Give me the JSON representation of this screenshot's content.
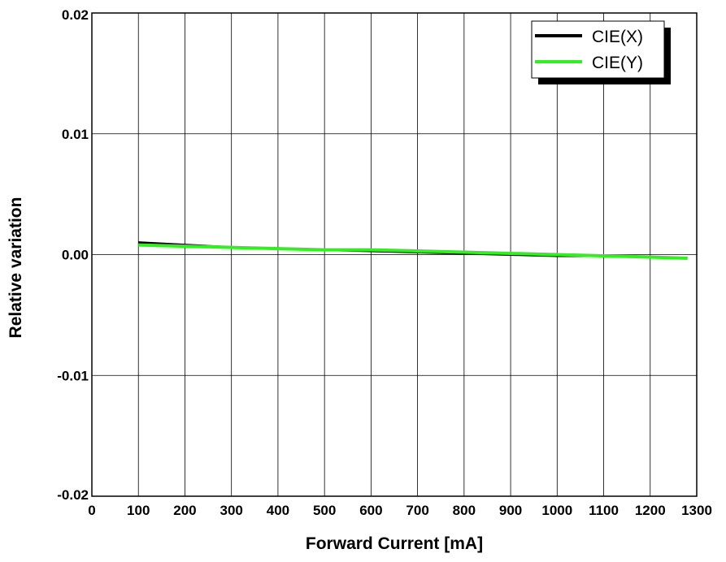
{
  "chart_data": {
    "type": "line",
    "title": "",
    "xlabel": "Forward Current [mA]",
    "ylabel": "Relative variation",
    "xlim": [
      0,
      1300
    ],
    "ylim": [
      -0.02,
      0.02
    ],
    "x_ticks": [
      0,
      100,
      200,
      300,
      400,
      500,
      600,
      700,
      800,
      900,
      1000,
      1100,
      1200,
      1300
    ],
    "x_tick_labels": [
      "0",
      "100",
      "200",
      "300",
      "400",
      "500",
      "600",
      "700",
      "800",
      "900",
      "1000",
      "1100",
      "1200",
      "1300"
    ],
    "y_ticks": [
      -0.02,
      -0.01,
      0.0,
      0.01,
      0.02
    ],
    "y_tick_labels": [
      "-0.02",
      "-0.01",
      "0.00",
      "0.01",
      "0.02"
    ],
    "grid": true,
    "legend_position": "top-right",
    "series": [
      {
        "name": "CIE(X)",
        "color": "#000000",
        "x": [
          100,
          200,
          300,
          400,
          500,
          600,
          700,
          800,
          900,
          1000,
          1100,
          1200,
          1280
        ],
        "y": [
          0.001,
          0.0008,
          0.0006,
          0.0005,
          0.0004,
          0.0003,
          0.0002,
          0.0001,
          0.0,
          -0.0001,
          -0.0001,
          -0.0002,
          -0.0003
        ]
      },
      {
        "name": "CIE(Y)",
        "color": "#33ee22",
        "x": [
          100,
          200,
          300,
          400,
          500,
          600,
          700,
          800,
          900,
          1000,
          1100,
          1200,
          1280
        ],
        "y": [
          0.0008,
          0.0007,
          0.0006,
          0.0005,
          0.0004,
          0.0004,
          0.0003,
          0.0002,
          0.0001,
          0.0,
          -0.0001,
          -0.0002,
          -0.0003
        ]
      }
    ]
  }
}
